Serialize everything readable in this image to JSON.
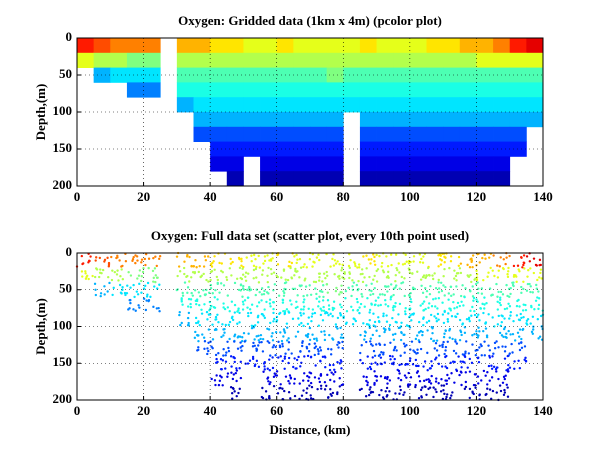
{
  "chart_data": [
    {
      "type": "heatmap",
      "title": "Oxygen: Gridded data (1km x 4m) (pcolor plot)",
      "ylabel": "Depth,(m)",
      "xlim": [
        0,
        140
      ],
      "xticks": [
        0,
        20,
        40,
        60,
        80,
        100,
        120,
        140
      ],
      "ylim": [
        0,
        200
      ],
      "yticks": [
        0,
        50,
        100,
        150,
        200
      ],
      "y_reversed": true,
      "grid": true,
      "colormap": "jet",
      "zlim": [
        0,
        1
      ],
      "xbins": [
        0,
        5,
        10,
        15,
        20,
        25,
        30,
        35,
        40,
        45,
        50,
        55,
        60,
        65,
        70,
        75,
        80,
        85,
        90,
        95,
        100,
        105,
        110,
        115,
        120,
        125,
        130,
        135,
        140
      ],
      "ybins": [
        0,
        20,
        40,
        60,
        80,
        100,
        120,
        140,
        160,
        180,
        200
      ],
      "z": [
        [
          0.85,
          0.8,
          0.75,
          0.75,
          0.75,
          null,
          0.7,
          0.7,
          0.65,
          0.65,
          0.6,
          0.6,
          0.65,
          0.6,
          0.6,
          0.6,
          0.6,
          0.65,
          0.6,
          0.6,
          0.6,
          0.65,
          0.65,
          0.7,
          0.7,
          0.75,
          0.85,
          0.9
        ],
        [
          0.6,
          0.55,
          0.55,
          0.5,
          0.5,
          null,
          0.55,
          0.55,
          0.55,
          0.55,
          0.55,
          0.55,
          0.55,
          0.55,
          0.55,
          0.55,
          0.55,
          0.55,
          0.55,
          0.55,
          0.55,
          0.55,
          0.55,
          0.55,
          0.6,
          0.6,
          0.6,
          0.6
        ],
        [
          null,
          0.3,
          0.35,
          0.35,
          0.35,
          null,
          0.45,
          0.45,
          0.45,
          0.45,
          0.45,
          0.45,
          0.45,
          0.45,
          0.45,
          0.5,
          0.45,
          0.45,
          0.45,
          0.45,
          0.45,
          0.45,
          0.45,
          0.45,
          0.45,
          0.45,
          0.45,
          0.45
        ],
        [
          null,
          null,
          null,
          0.25,
          0.25,
          null,
          0.4,
          0.4,
          0.4,
          0.4,
          0.4,
          0.4,
          0.4,
          0.4,
          0.4,
          0.4,
          0.4,
          0.4,
          0.4,
          0.4,
          0.4,
          0.4,
          0.4,
          0.4,
          0.4,
          0.4,
          0.4,
          0.4
        ],
        [
          null,
          null,
          null,
          null,
          null,
          null,
          0.3,
          0.35,
          0.35,
          0.35,
          0.35,
          0.35,
          0.35,
          0.35,
          0.35,
          0.35,
          0.35,
          0.35,
          0.35,
          0.35,
          0.35,
          0.35,
          0.35,
          0.35,
          0.35,
          0.35,
          0.35,
          0.35
        ],
        [
          null,
          null,
          null,
          null,
          null,
          null,
          null,
          0.3,
          0.3,
          0.3,
          0.3,
          0.3,
          0.3,
          0.3,
          0.3,
          0.3,
          null,
          0.3,
          0.3,
          0.3,
          0.3,
          0.3,
          0.3,
          0.3,
          0.3,
          0.3,
          0.3,
          0.3
        ],
        [
          null,
          null,
          null,
          null,
          null,
          null,
          null,
          0.2,
          0.2,
          0.2,
          0.2,
          0.2,
          0.2,
          0.2,
          0.2,
          0.2,
          null,
          0.2,
          0.2,
          0.2,
          0.2,
          0.2,
          0.2,
          0.2,
          0.2,
          0.2,
          0.2,
          null
        ],
        [
          null,
          null,
          null,
          null,
          null,
          null,
          null,
          null,
          0.15,
          0.15,
          0.15,
          0.15,
          0.15,
          0.15,
          0.15,
          0.15,
          null,
          0.15,
          0.15,
          0.15,
          0.15,
          0.15,
          0.15,
          0.15,
          0.15,
          0.15,
          0.15,
          null
        ],
        [
          null,
          null,
          null,
          null,
          null,
          null,
          null,
          null,
          0.1,
          0.1,
          null,
          0.1,
          0.1,
          0.1,
          0.1,
          0.1,
          null,
          0.1,
          0.1,
          0.1,
          0.1,
          0.1,
          0.1,
          0.1,
          0.1,
          0.1,
          null,
          null
        ],
        [
          null,
          null,
          null,
          null,
          null,
          null,
          null,
          null,
          null,
          0.05,
          null,
          0.05,
          0.05,
          0.05,
          0.05,
          0.05,
          null,
          0.05,
          0.05,
          0.05,
          0.05,
          0.05,
          0.05,
          0.05,
          0.05,
          0.05,
          null,
          null
        ]
      ]
    },
    {
      "type": "scatter",
      "title": "Oxygen: Full data set (scatter plot, every 10th point used)",
      "ylabel": "Depth,(m)",
      "xlabel": "Distance, (km)",
      "xlim": [
        0,
        140
      ],
      "xticks": [
        0,
        20,
        40,
        60,
        80,
        100,
        120,
        140
      ],
      "ylim": [
        0,
        200
      ],
      "yticks": [
        0,
        50,
        100,
        150,
        200
      ],
      "y_reversed": true,
      "grid": true,
      "colormap": "jet",
      "zlim": [
        0,
        1
      ],
      "xbins": [
        0,
        5,
        10,
        15,
        20,
        25,
        30,
        35,
        40,
        45,
        50,
        55,
        60,
        65,
        70,
        75,
        80,
        85,
        90,
        95,
        100,
        105,
        110,
        115,
        120,
        125,
        130,
        135,
        140
      ],
      "ybins": [
        0,
        20,
        40,
        60,
        80,
        100,
        120,
        140,
        160,
        180,
        200
      ],
      "z": [
        [
          0.85,
          0.8,
          0.75,
          0.75,
          0.75,
          null,
          0.7,
          0.7,
          0.65,
          0.65,
          0.6,
          0.6,
          0.65,
          0.6,
          0.6,
          0.6,
          0.6,
          0.65,
          0.6,
          0.6,
          0.6,
          0.65,
          0.65,
          0.7,
          0.7,
          0.75,
          0.85,
          0.9
        ],
        [
          0.6,
          0.55,
          0.55,
          0.5,
          0.5,
          null,
          0.55,
          0.55,
          0.55,
          0.55,
          0.55,
          0.55,
          0.55,
          0.55,
          0.55,
          0.55,
          0.55,
          0.55,
          0.55,
          0.55,
          0.55,
          0.55,
          0.55,
          0.55,
          0.6,
          0.6,
          0.6,
          0.6
        ],
        [
          null,
          0.3,
          0.35,
          0.35,
          0.35,
          null,
          0.45,
          0.45,
          0.45,
          0.45,
          0.45,
          0.45,
          0.45,
          0.45,
          0.45,
          0.5,
          0.45,
          0.45,
          0.45,
          0.45,
          0.45,
          0.45,
          0.45,
          0.45,
          0.45,
          0.45,
          0.45,
          0.45
        ],
        [
          null,
          null,
          null,
          0.25,
          0.25,
          null,
          0.4,
          0.4,
          0.4,
          0.4,
          0.4,
          0.4,
          0.4,
          0.4,
          0.4,
          0.4,
          0.4,
          0.4,
          0.4,
          0.4,
          0.4,
          0.4,
          0.4,
          0.4,
          0.4,
          0.4,
          0.4,
          0.4
        ],
        [
          null,
          null,
          null,
          null,
          null,
          null,
          0.3,
          0.35,
          0.35,
          0.35,
          0.35,
          0.35,
          0.35,
          0.35,
          0.35,
          0.35,
          0.35,
          0.35,
          0.35,
          0.35,
          0.35,
          0.35,
          0.35,
          0.35,
          0.35,
          0.35,
          0.35,
          0.35
        ],
        [
          null,
          null,
          null,
          null,
          null,
          null,
          null,
          0.3,
          0.3,
          0.3,
          0.3,
          0.3,
          0.3,
          0.3,
          0.3,
          0.3,
          null,
          0.3,
          0.3,
          0.3,
          0.3,
          0.3,
          0.3,
          0.3,
          0.3,
          0.3,
          0.3,
          0.3
        ],
        [
          null,
          null,
          null,
          null,
          null,
          null,
          null,
          0.2,
          0.2,
          0.2,
          0.2,
          0.2,
          0.2,
          0.2,
          0.2,
          0.2,
          null,
          0.2,
          0.2,
          0.2,
          0.2,
          0.2,
          0.2,
          0.2,
          0.2,
          0.2,
          0.2,
          null
        ],
        [
          null,
          null,
          null,
          null,
          null,
          null,
          null,
          null,
          0.15,
          0.15,
          0.15,
          0.15,
          0.15,
          0.15,
          0.15,
          0.15,
          null,
          0.15,
          0.15,
          0.15,
          0.15,
          0.15,
          0.15,
          0.15,
          0.15,
          0.15,
          0.15,
          null
        ],
        [
          null,
          null,
          null,
          null,
          null,
          null,
          null,
          null,
          0.1,
          0.1,
          null,
          0.1,
          0.1,
          0.1,
          0.1,
          0.1,
          null,
          0.1,
          0.1,
          0.1,
          0.1,
          0.1,
          0.1,
          0.1,
          0.1,
          0.1,
          null,
          null
        ],
        [
          null,
          null,
          null,
          null,
          null,
          null,
          null,
          null,
          null,
          0.05,
          null,
          0.05,
          0.05,
          0.05,
          0.05,
          0.05,
          null,
          0.05,
          0.05,
          0.05,
          0.05,
          0.05,
          0.05,
          0.05,
          0.05,
          0.05,
          null,
          null
        ]
      ]
    }
  ]
}
